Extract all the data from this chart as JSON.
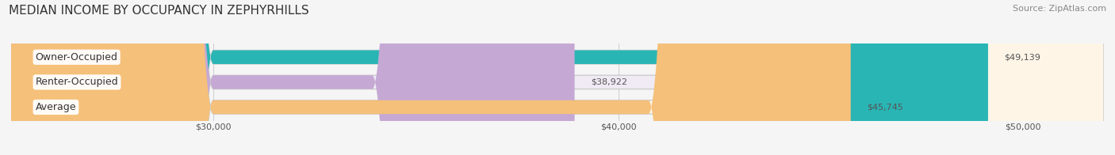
{
  "title": "MEDIAN INCOME BY OCCUPANCY IN ZEPHYRHILLS",
  "source": "Source: ZipAtlas.com",
  "categories": [
    "Owner-Occupied",
    "Renter-Occupied",
    "Average"
  ],
  "values": [
    49139,
    38922,
    45745
  ],
  "labels": [
    "$49,139",
    "$38,922",
    "$45,745"
  ],
  "bar_colors": [
    "#2ab5b5",
    "#c5a8d4",
    "#f5c07a"
  ],
  "bar_bg_colors": [
    "#e8f8f8",
    "#f0eaf5",
    "#fef5e7"
  ],
  "xmin": 25000,
  "xmax": 52000,
  "xticks": [
    30000,
    40000,
    50000
  ],
  "xtick_labels": [
    "$30,000",
    "$40,000",
    "$50,000"
  ],
  "title_fontsize": 11,
  "source_fontsize": 8,
  "label_fontsize": 9,
  "bar_label_fontsize": 8,
  "bar_height": 0.55,
  "background_color": "#f5f5f5"
}
